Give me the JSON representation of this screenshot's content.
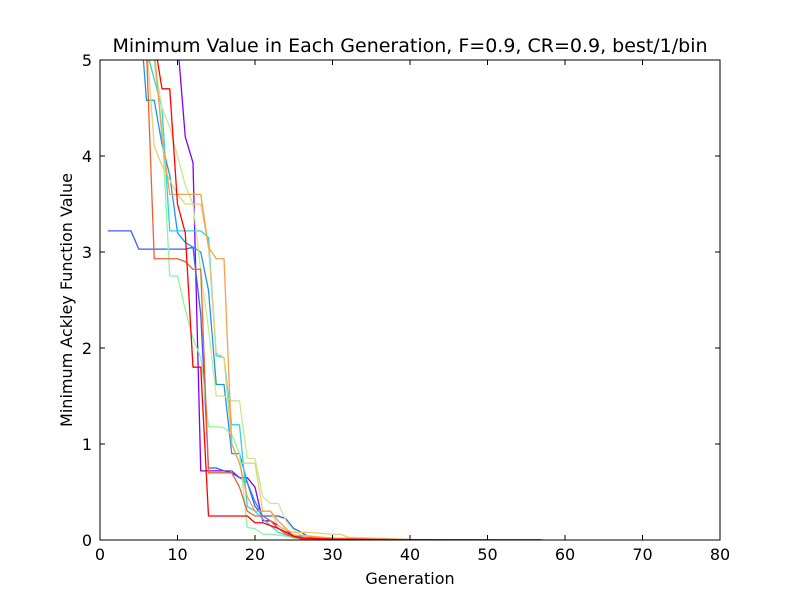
{
  "chart_data": {
    "type": "line",
    "title": "Minimum Value in Each Generation, F=0.9, CR=0.9, best/1/bin",
    "xlabel": "Generation",
    "ylabel": "Minimum Ackley Function Value",
    "xlim": [
      0,
      80
    ],
    "ylim": [
      0,
      5
    ],
    "x_ticks": [
      "0",
      "10",
      "20",
      "30",
      "40",
      "50",
      "60",
      "70",
      "80"
    ],
    "y_ticks": [
      "0",
      "1",
      "2",
      "3",
      "4",
      "5"
    ],
    "grid": false,
    "legend": "none",
    "series": [
      {
        "color": "#8000ff",
        "x": [
          1,
          10,
          11,
          12,
          13,
          14,
          15,
          16,
          17,
          18,
          19,
          20,
          21,
          22,
          23,
          24,
          25,
          26,
          27,
          30,
          40,
          57
        ],
        "y": [
          9.2,
          5.2,
          4.2,
          3.93,
          0.72,
          0.72,
          0.72,
          0.72,
          0.7,
          0.65,
          0.65,
          0.55,
          0.2,
          0.2,
          0.15,
          0.1,
          0.05,
          0.03,
          0.01,
          0.005,
          0.002,
          0.001
        ]
      },
      {
        "color": "#3b5cf7",
        "x": [
          1,
          4,
          5,
          11,
          12,
          13,
          14,
          15,
          16,
          17,
          18,
          19,
          20,
          21,
          22,
          23,
          24,
          25,
          26,
          27,
          28,
          30,
          40,
          57
        ],
        "y": [
          3.22,
          3.22,
          3.03,
          3.03,
          3.05,
          2.35,
          0.75,
          0.75,
          0.72,
          0.72,
          0.65,
          0.6,
          0.35,
          0.25,
          0.25,
          0.25,
          0.22,
          0.12,
          0.08,
          0.03,
          0.02,
          0.01,
          0.003,
          0.001
        ]
      },
      {
        "color": "#1996f3",
        "x": [
          1,
          6,
          7,
          8,
          9,
          10,
          11,
          12,
          13,
          14,
          15,
          16,
          17,
          18,
          19,
          20,
          21,
          22,
          23,
          24,
          25,
          26,
          30,
          40,
          57
        ],
        "y": [
          9.8,
          4.58,
          4.58,
          4.12,
          3.8,
          3.2,
          3.1,
          3.05,
          3.0,
          2.6,
          1.62,
          1.62,
          0.9,
          0.9,
          0.6,
          0.4,
          0.25,
          0.2,
          0.12,
          0.08,
          0.04,
          0.02,
          0.01,
          0.003,
          0.001
        ]
      },
      {
        "color": "#2ad4e8",
        "x": [
          1,
          6,
          7,
          8,
          9,
          10,
          11,
          12,
          13,
          14,
          15,
          16,
          17,
          18,
          19,
          20,
          21,
          22,
          23,
          24,
          25,
          30,
          40,
          57
        ],
        "y": [
          9.5,
          5.1,
          4.8,
          4.5,
          3.22,
          3.22,
          3.22,
          3.22,
          3.22,
          3.15,
          1.92,
          1.9,
          1.2,
          1.2,
          0.35,
          0.3,
          0.22,
          0.15,
          0.08,
          0.05,
          0.03,
          0.01,
          0.003,
          0.001
        ]
      },
      {
        "color": "#8cf5a0",
        "x": [
          1,
          7,
          8,
          9,
          10,
          11,
          12,
          13,
          14,
          15,
          16,
          17,
          18,
          19,
          20,
          21,
          22,
          23,
          24,
          25,
          30,
          40,
          57
        ],
        "y": [
          9.0,
          5.0,
          4.3,
          2.75,
          2.75,
          2.4,
          2.1,
          1.9,
          1.18,
          1.18,
          1.17,
          1.1,
          0.9,
          0.13,
          0.12,
          0.06,
          0.06,
          0.05,
          0.04,
          0.02,
          0.01,
          0.003,
          0.001
        ]
      },
      {
        "color": "#c8e890",
        "x": [
          1,
          7,
          8,
          9,
          10,
          11,
          12,
          13,
          14,
          15,
          16,
          17,
          18,
          19,
          20,
          21,
          22,
          23,
          24,
          25,
          26,
          30,
          40,
          57
        ],
        "y": [
          9.3,
          5.0,
          4.5,
          4.3,
          4.0,
          3.7,
          3.5,
          2.8,
          2.2,
          1.5,
          1.5,
          1.45,
          1.45,
          0.85,
          0.85,
          0.45,
          0.38,
          0.38,
          0.2,
          0.1,
          0.05,
          0.02,
          0.005,
          0.002
        ]
      },
      {
        "color": "#e8d070",
        "x": [
          1,
          6,
          7,
          8,
          9,
          10,
          11,
          12,
          13,
          14,
          15,
          16,
          17,
          18,
          19,
          20,
          21,
          22,
          23,
          24,
          25,
          26,
          27,
          30,
          31,
          32,
          40,
          57
        ],
        "y": [
          9.6,
          5.2,
          4.1,
          3.9,
          3.75,
          3.6,
          3.5,
          3.5,
          3.5,
          3.05,
          1.95,
          1.9,
          1.0,
          0.8,
          0.8,
          0.8,
          0.3,
          0.3,
          0.15,
          0.1,
          0.08,
          0.08,
          0.08,
          0.06,
          0.06,
          0.03,
          0.005,
          0.002
        ]
      },
      {
        "color": "#f5a050",
        "x": [
          1,
          7,
          8,
          9,
          10,
          11,
          12,
          13,
          14,
          15,
          16,
          17,
          18,
          19,
          20,
          21,
          22,
          23,
          24,
          25,
          30,
          40,
          57
        ],
        "y": [
          9.1,
          5.1,
          4.2,
          3.6,
          3.6,
          3.6,
          3.6,
          3.6,
          3.05,
          2.93,
          2.93,
          1.0,
          0.8,
          0.45,
          0.3,
          0.3,
          0.3,
          0.2,
          0.12,
          0.05,
          0.02,
          0.003,
          0.001
        ]
      },
      {
        "color": "#f06030",
        "x": [
          1,
          6,
          7,
          8,
          9,
          10,
          11,
          12,
          13,
          14,
          15,
          16,
          17,
          18,
          19,
          20,
          21,
          22,
          23,
          24,
          25,
          26,
          30,
          40,
          57
        ],
        "y": [
          9.4,
          5.1,
          2.93,
          2.93,
          2.93,
          2.93,
          2.9,
          2.82,
          2.82,
          0.7,
          0.7,
          0.7,
          0.7,
          0.55,
          0.3,
          0.25,
          0.25,
          0.2,
          0.12,
          0.06,
          0.03,
          0.01,
          0.005,
          0.002,
          0.001
        ]
      },
      {
        "color": "#ff0000",
        "x": [
          1,
          7,
          8,
          9,
          10,
          11,
          12,
          13,
          14,
          15,
          16,
          17,
          18,
          19,
          20,
          21,
          22,
          23,
          24,
          25,
          26,
          30,
          40,
          57
        ],
        "y": [
          9.7,
          5.2,
          4.7,
          4.7,
          3.5,
          3.2,
          1.8,
          1.8,
          0.25,
          0.25,
          0.25,
          0.25,
          0.25,
          0.25,
          0.18,
          0.18,
          0.15,
          0.12,
          0.08,
          0.04,
          0.02,
          0.01,
          0.003,
          0.001
        ]
      }
    ]
  }
}
